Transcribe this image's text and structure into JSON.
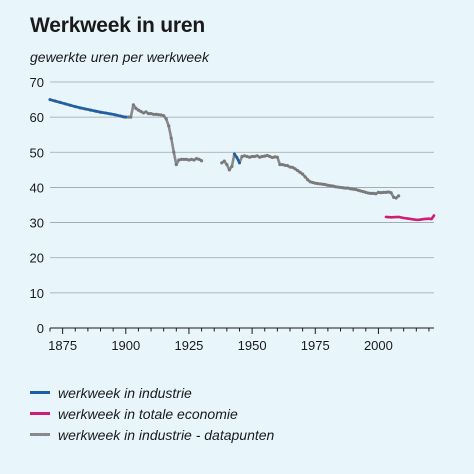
{
  "chart_data": {
    "type": "line",
    "title": "Werkweek in uren",
    "subtitle": "gewerkte uren per werkweek",
    "xlabel": "",
    "ylabel": "",
    "xlim": [
      1870,
      2022
    ],
    "ylim": [
      0,
      70
    ],
    "x_ticks": [
      1875,
      1900,
      1925,
      1950,
      1975,
      2000
    ],
    "y_ticks": [
      0,
      10,
      20,
      30,
      40,
      50,
      60,
      70
    ],
    "grid": "horizontal",
    "legend_position": "bottom",
    "series": [
      {
        "name": "werkweek in industrie",
        "color": "#1f5fa6",
        "x": [
          1870,
          1875,
          1880,
          1885,
          1890,
          1895,
          1899,
          1900
        ],
        "y": [
          65,
          64,
          63,
          62.2,
          61.4,
          60.8,
          60.1,
          60
        ]
      },
      {
        "name": "werkweek in industrie",
        "color": "#1f5fa6",
        "x": [
          1943,
          1944,
          1945
        ],
        "y": [
          49.5,
          48.5,
          47
        ]
      },
      {
        "name": "werkweek in totale economie",
        "color": "#d01c74",
        "x": [
          2003,
          2005,
          2008,
          2010,
          2012,
          2014,
          2015,
          2016,
          2018,
          2020,
          2021,
          2022
        ],
        "y": [
          31.6,
          31.5,
          31.6,
          31.3,
          31.1,
          30.9,
          30.8,
          30.8,
          31.0,
          31.1,
          31.0,
          32.0
        ]
      },
      {
        "name": "werkweek in industrie - datapunten",
        "color": "#8a8a8a",
        "segments": [
          {
            "x": [
              1870,
              1872,
              1874,
              1876,
              1878,
              1880,
              1882,
              1884,
              1886,
              1888,
              1890,
              1892,
              1894,
              1896,
              1898,
              1899,
              1900,
              1901,
              1902,
              1903,
              1904,
              1905,
              1906,
              1907,
              1908,
              1909,
              1910,
              1911,
              1912,
              1913,
              1914,
              1915,
              1916,
              1917,
              1918,
              1919,
              1920,
              1921,
              1922,
              1923,
              1924,
              1925,
              1926,
              1927,
              1928,
              1929,
              1930
            ],
            "y": [
              65,
              64.6,
              64.2,
              63.8,
              63.4,
              63,
              62.6,
              62.3,
              62,
              61.7,
              61.4,
              61.2,
              60.9,
              60.6,
              60.3,
              60.1,
              60,
              60,
              60,
              63.5,
              62.5,
              62,
              61.6,
              61.2,
              61.5,
              61,
              61,
              60.8,
              60.8,
              60.7,
              60.6,
              60.4,
              59.5,
              57.5,
              54,
              50,
              46.5,
              47.8,
              48,
              48,
              48,
              47.8,
              48,
              47.8,
              48.2,
              48,
              47.6
            ]
          },
          {
            "x": [
              1938,
              1939,
              1940,
              1941,
              1942,
              1943,
              1944,
              1945,
              1946,
              1947,
              1948,
              1949,
              1950,
              1951,
              1952,
              1953,
              1954,
              1955,
              1956,
              1957,
              1958,
              1959,
              1960,
              1961,
              1962,
              1963,
              1964,
              1965,
              1966,
              1967,
              1968,
              1969,
              1970,
              1971,
              1972,
              1973,
              1974,
              1975,
              1976,
              1977,
              1978,
              1979,
              1980,
              1981,
              1982,
              1983,
              1984,
              1985,
              1986,
              1987,
              1988,
              1989,
              1990,
              1991,
              1992,
              1993,
              1994,
              1995,
              1996,
              1997,
              1998,
              1999,
              2000,
              2001,
              2002,
              2003,
              2004,
              2005,
              2006,
              2007,
              2008
            ],
            "y": [
              47,
              47.5,
              46.5,
              45,
              46,
              49.5,
              48.5,
              47,
              48.8,
              49,
              48.8,
              48.6,
              48.8,
              48.8,
              49,
              48.6,
              48.8,
              48.9,
              49.1,
              48.8,
              48.5,
              48.7,
              48.6,
              46.5,
              46.5,
              46.3,
              46.2,
              45.8,
              45.7,
              45.3,
              44.8,
              44.3,
              43.8,
              43,
              42.2,
              41.6,
              41.4,
              41.2,
              41.1,
              41,
              40.9,
              40.8,
              40.6,
              40.5,
              40.4,
              40.2,
              40.1,
              40,
              39.9,
              39.8,
              39.8,
              39.6,
              39.5,
              39.4,
              39.2,
              39.0,
              38.8,
              38.6,
              38.4,
              38.3,
              38.3,
              38.2,
              38.6,
              38.5,
              38.6,
              38.6,
              38.7,
              38.5,
              37.2,
              37.0,
              37.6
            ]
          }
        ]
      }
    ]
  },
  "legend": [
    {
      "label": "werkweek in industrie",
      "color": "#1f5fa6",
      "style": "solid"
    },
    {
      "label": "werkweek in totale economie",
      "color": "#d01c74",
      "style": "solid"
    },
    {
      "label": "werkweek in industrie - datapunten",
      "color": "#8a8a8a",
      "style": "dotted"
    }
  ]
}
